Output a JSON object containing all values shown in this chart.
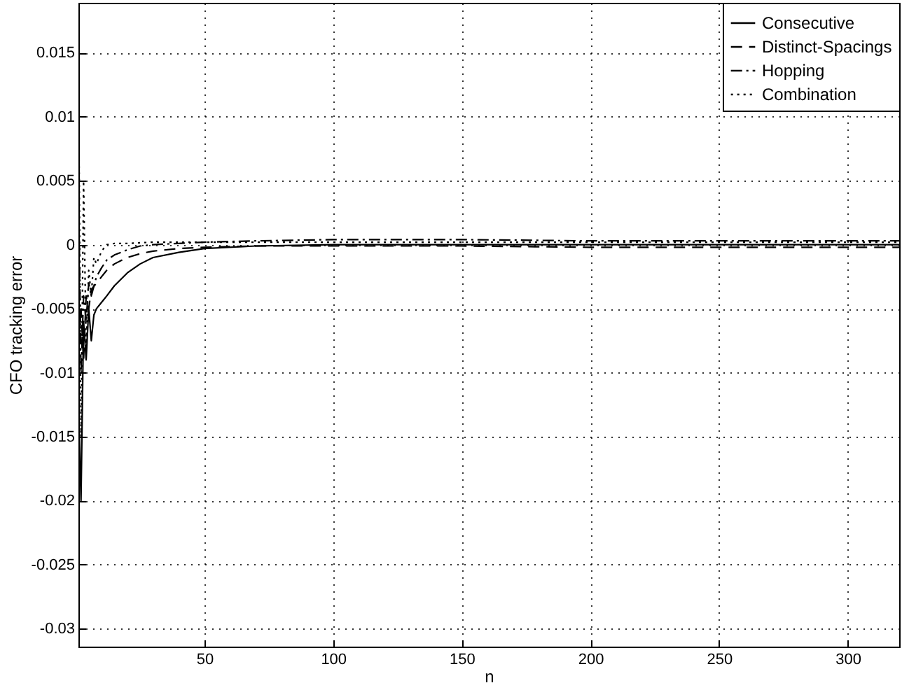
{
  "chart_data": {
    "type": "line",
    "xlabel": "n",
    "ylabel": "CFO tracking error",
    "xlim": [
      1,
      320
    ],
    "ylim": [
      -0.0314,
      0.0189
    ],
    "xticks": [
      50,
      100,
      150,
      200,
      250,
      300
    ],
    "yticks": [
      -0.03,
      -0.025,
      -0.02,
      -0.015,
      -0.01,
      -0.005,
      0,
      0.005,
      0.01,
      0.015
    ],
    "grid": true,
    "legend": "top right",
    "series": [
      {
        "name": "Consecutive",
        "color": "#000000",
        "line_style": "solid",
        "x": [
          1,
          2,
          3,
          4,
          5,
          6,
          7,
          8,
          10,
          12,
          15,
          20,
          25,
          30,
          40,
          50,
          70,
          100,
          150,
          200,
          250,
          300,
          320
        ],
        "values": [
          -0.012,
          -0.02,
          -0.006,
          -0.009,
          -0.005,
          -0.0075,
          -0.0055,
          -0.005,
          -0.0045,
          -0.004,
          -0.0032,
          -0.0022,
          -0.0015,
          -0.001,
          -0.0006,
          -0.0003,
          -0.0001,
          0,
          0,
          0,
          0,
          0,
          0
        ]
      },
      {
        "name": "Distinct-Spacings",
        "color": "#000000",
        "line_style": "dashed",
        "x": [
          1,
          2,
          3,
          4,
          5,
          6,
          8,
          10,
          12,
          15,
          20,
          25,
          30,
          40,
          50,
          70,
          100,
          150,
          200,
          250,
          300,
          320
        ],
        "values": [
          -0.008,
          -0.005,
          -0.009,
          -0.004,
          -0.005,
          -0.0035,
          -0.003,
          -0.0025,
          -0.002,
          -0.0015,
          -0.001,
          -0.0007,
          -0.0005,
          -0.0003,
          -0.0002,
          -0.0001,
          -0.0001,
          -0.0001,
          -0.0002,
          -0.0002,
          -0.0002,
          -0.0002
        ]
      },
      {
        "name": "Hopping",
        "color": "#000000",
        "line_style": "dashdot",
        "x": [
          1,
          2,
          3,
          4,
          5,
          6,
          8,
          10,
          12,
          15,
          20,
          25,
          30,
          40,
          50,
          70,
          100,
          150,
          200,
          250,
          300,
          320
        ],
        "values": [
          0.005,
          -0.01,
          -0.004,
          -0.006,
          -0.003,
          -0.004,
          -0.0025,
          -0.0018,
          -0.0012,
          -0.0008,
          -0.0004,
          -0.0001,
          0,
          0.0001,
          0.0002,
          0.0003,
          0.0004,
          0.0004,
          0.0003,
          0.0003,
          0.0003,
          0.0003
        ]
      },
      {
        "name": "Combination",
        "color": "#000000",
        "line_style": "dotted",
        "x": [
          1,
          2,
          3,
          4,
          5,
          6,
          7,
          8,
          10,
          12,
          15,
          20,
          30,
          50,
          100,
          150,
          200,
          250,
          300,
          320
        ],
        "values": [
          0.015,
          -0.015,
          0.005,
          -0.008,
          -0.002,
          -0.004,
          -0.001,
          -0.0015,
          -0.0005,
          0,
          0.0001,
          0.0001,
          0.0002,
          0.0002,
          0.0002,
          0.0002,
          0.0002,
          0.0002,
          0.0002,
          0.0002
        ]
      }
    ]
  }
}
